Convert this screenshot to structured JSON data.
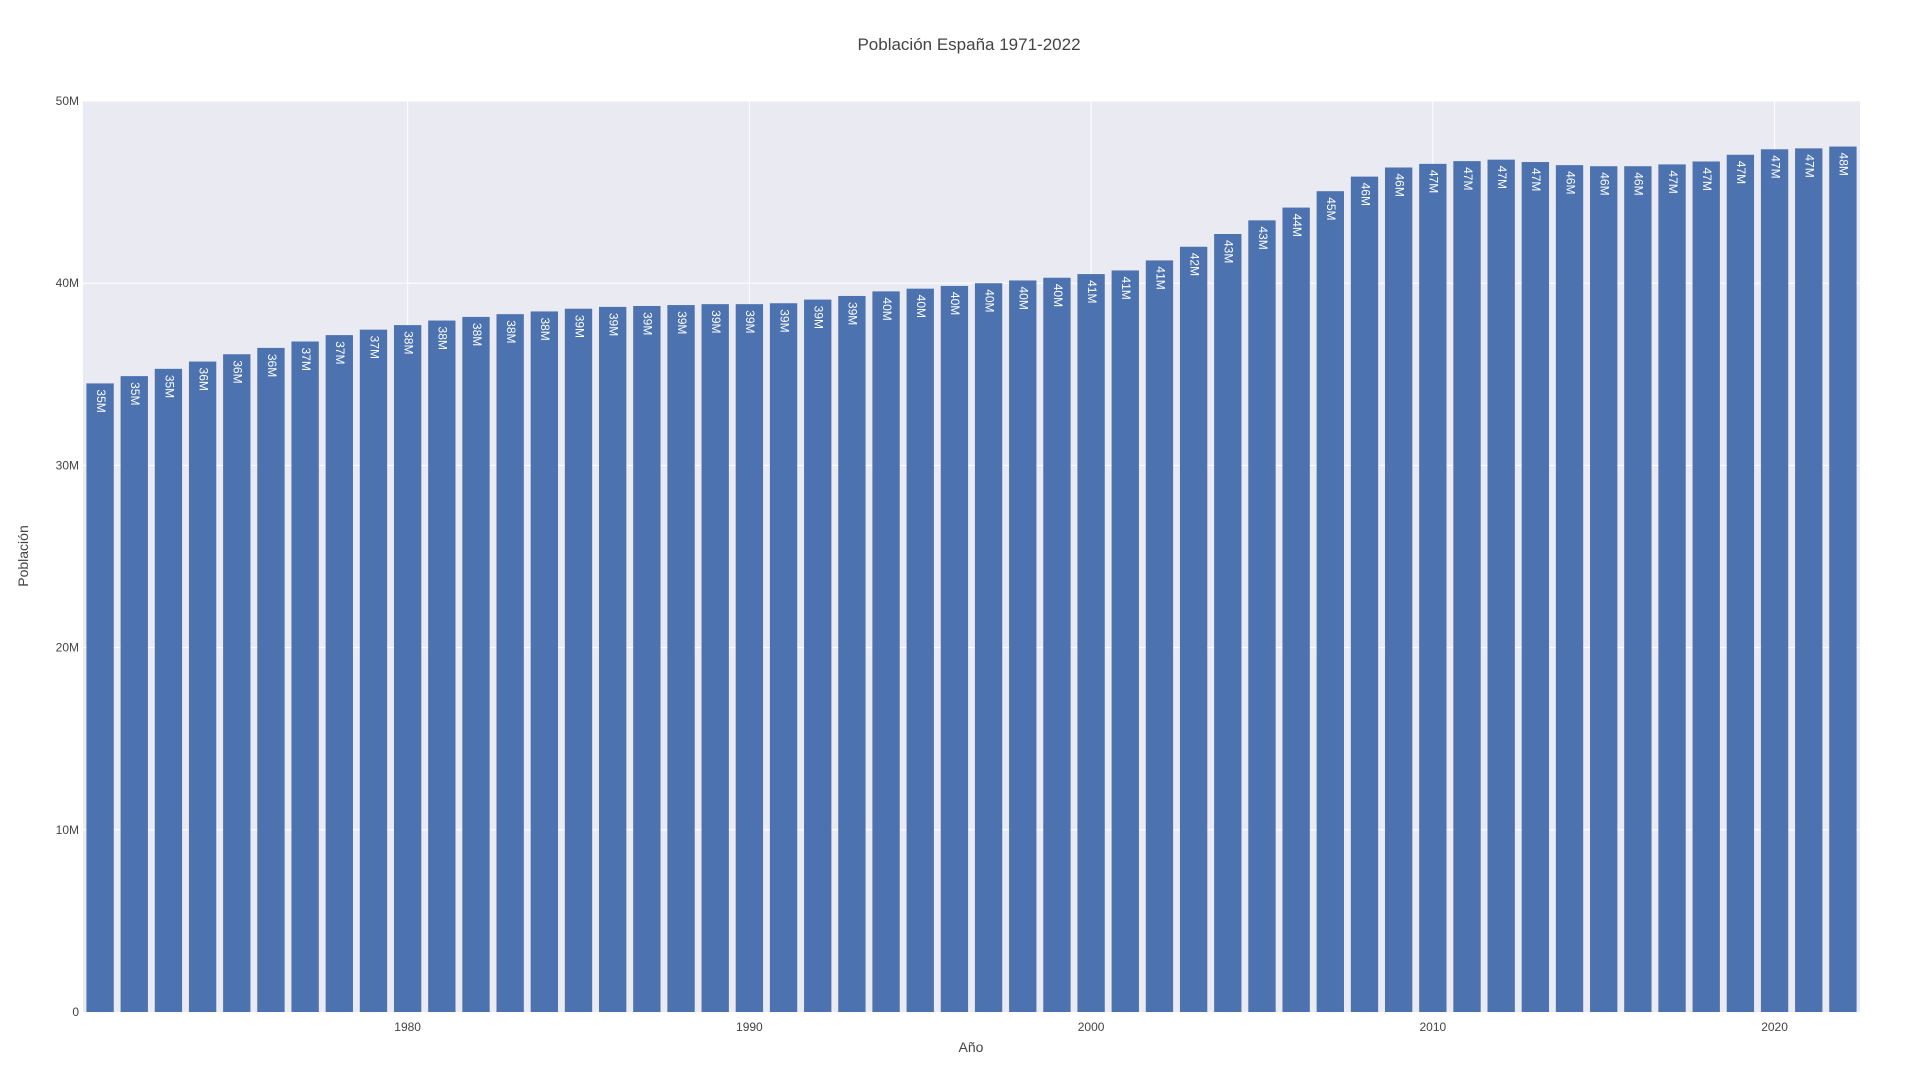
{
  "chart_data": {
    "type": "bar",
    "title": "Población España 1971-2022",
    "xlabel": "Año",
    "ylabel": "Población",
    "ylim": [
      0,
      50000000
    ],
    "xlim": [
      1970.5,
      2022.5
    ],
    "x_ticks": [
      1980,
      1990,
      2000,
      2010,
      2020
    ],
    "y_ticks": [
      {
        "value": 0,
        "label": "0"
      },
      {
        "value": 10000000,
        "label": "10M"
      },
      {
        "value": 20000000,
        "label": "20M"
      },
      {
        "value": 30000000,
        "label": "30M"
      },
      {
        "value": 40000000,
        "label": "40M"
      },
      {
        "value": 50000000,
        "label": "50M"
      }
    ],
    "grid": true,
    "colors": {
      "bar": "#4c72b0",
      "plot_bg": "#eaeaf2",
      "grid": "#ffffff"
    },
    "series": [
      {
        "x": [
          1971,
          1972,
          1973,
          1974,
          1975,
          1976,
          1977,
          1978,
          1979,
          1980,
          1981,
          1982,
          1983,
          1984,
          1985,
          1986,
          1987,
          1988,
          1989,
          1990,
          1991,
          1992,
          1993,
          1994,
          1995,
          1996,
          1997,
          1998,
          1999,
          2000,
          2001,
          2002,
          2003,
          2004,
          2005,
          2006,
          2007,
          2008,
          2009,
          2010,
          2011,
          2012,
          2013,
          2014,
          2015,
          2016,
          2017,
          2018,
          2019,
          2020,
          2021,
          2022
        ],
        "values": [
          34500000,
          34900000,
          35300000,
          35700000,
          36100000,
          36450000,
          36800000,
          37150000,
          37450000,
          37700000,
          37950000,
          38150000,
          38300000,
          38450000,
          38600000,
          38700000,
          38750000,
          38800000,
          38850000,
          38850000,
          38900000,
          39100000,
          39300000,
          39550000,
          39700000,
          39850000,
          40000000,
          40150000,
          40300000,
          40500000,
          40700000,
          41250000,
          42000000,
          42700000,
          43450000,
          44150000,
          45050000,
          45850000,
          46350000,
          46550000,
          46700000,
          46780000,
          46650000,
          46480000,
          46420000,
          46420000,
          46520000,
          46680000,
          47050000,
          47350000,
          47400000,
          47500000
        ],
        "labels": [
          "35M",
          "35M",
          "35M",
          "36M",
          "36M",
          "36M",
          "37M",
          "37M",
          "37M",
          "38M",
          "38M",
          "38M",
          "38M",
          "38M",
          "39M",
          "39M",
          "39M",
          "39M",
          "39M",
          "39M",
          "39M",
          "39M",
          "39M",
          "40M",
          "40M",
          "40M",
          "40M",
          "40M",
          "40M",
          "41M",
          "41M",
          "41M",
          "42M",
          "43M",
          "43M",
          "44M",
          "45M",
          "46M",
          "46M",
          "47M",
          "47M",
          "47M",
          "47M",
          "46M",
          "46M",
          "46M",
          "47M",
          "47M",
          "47M",
          "47M",
          "47M",
          "48M"
        ]
      }
    ]
  }
}
